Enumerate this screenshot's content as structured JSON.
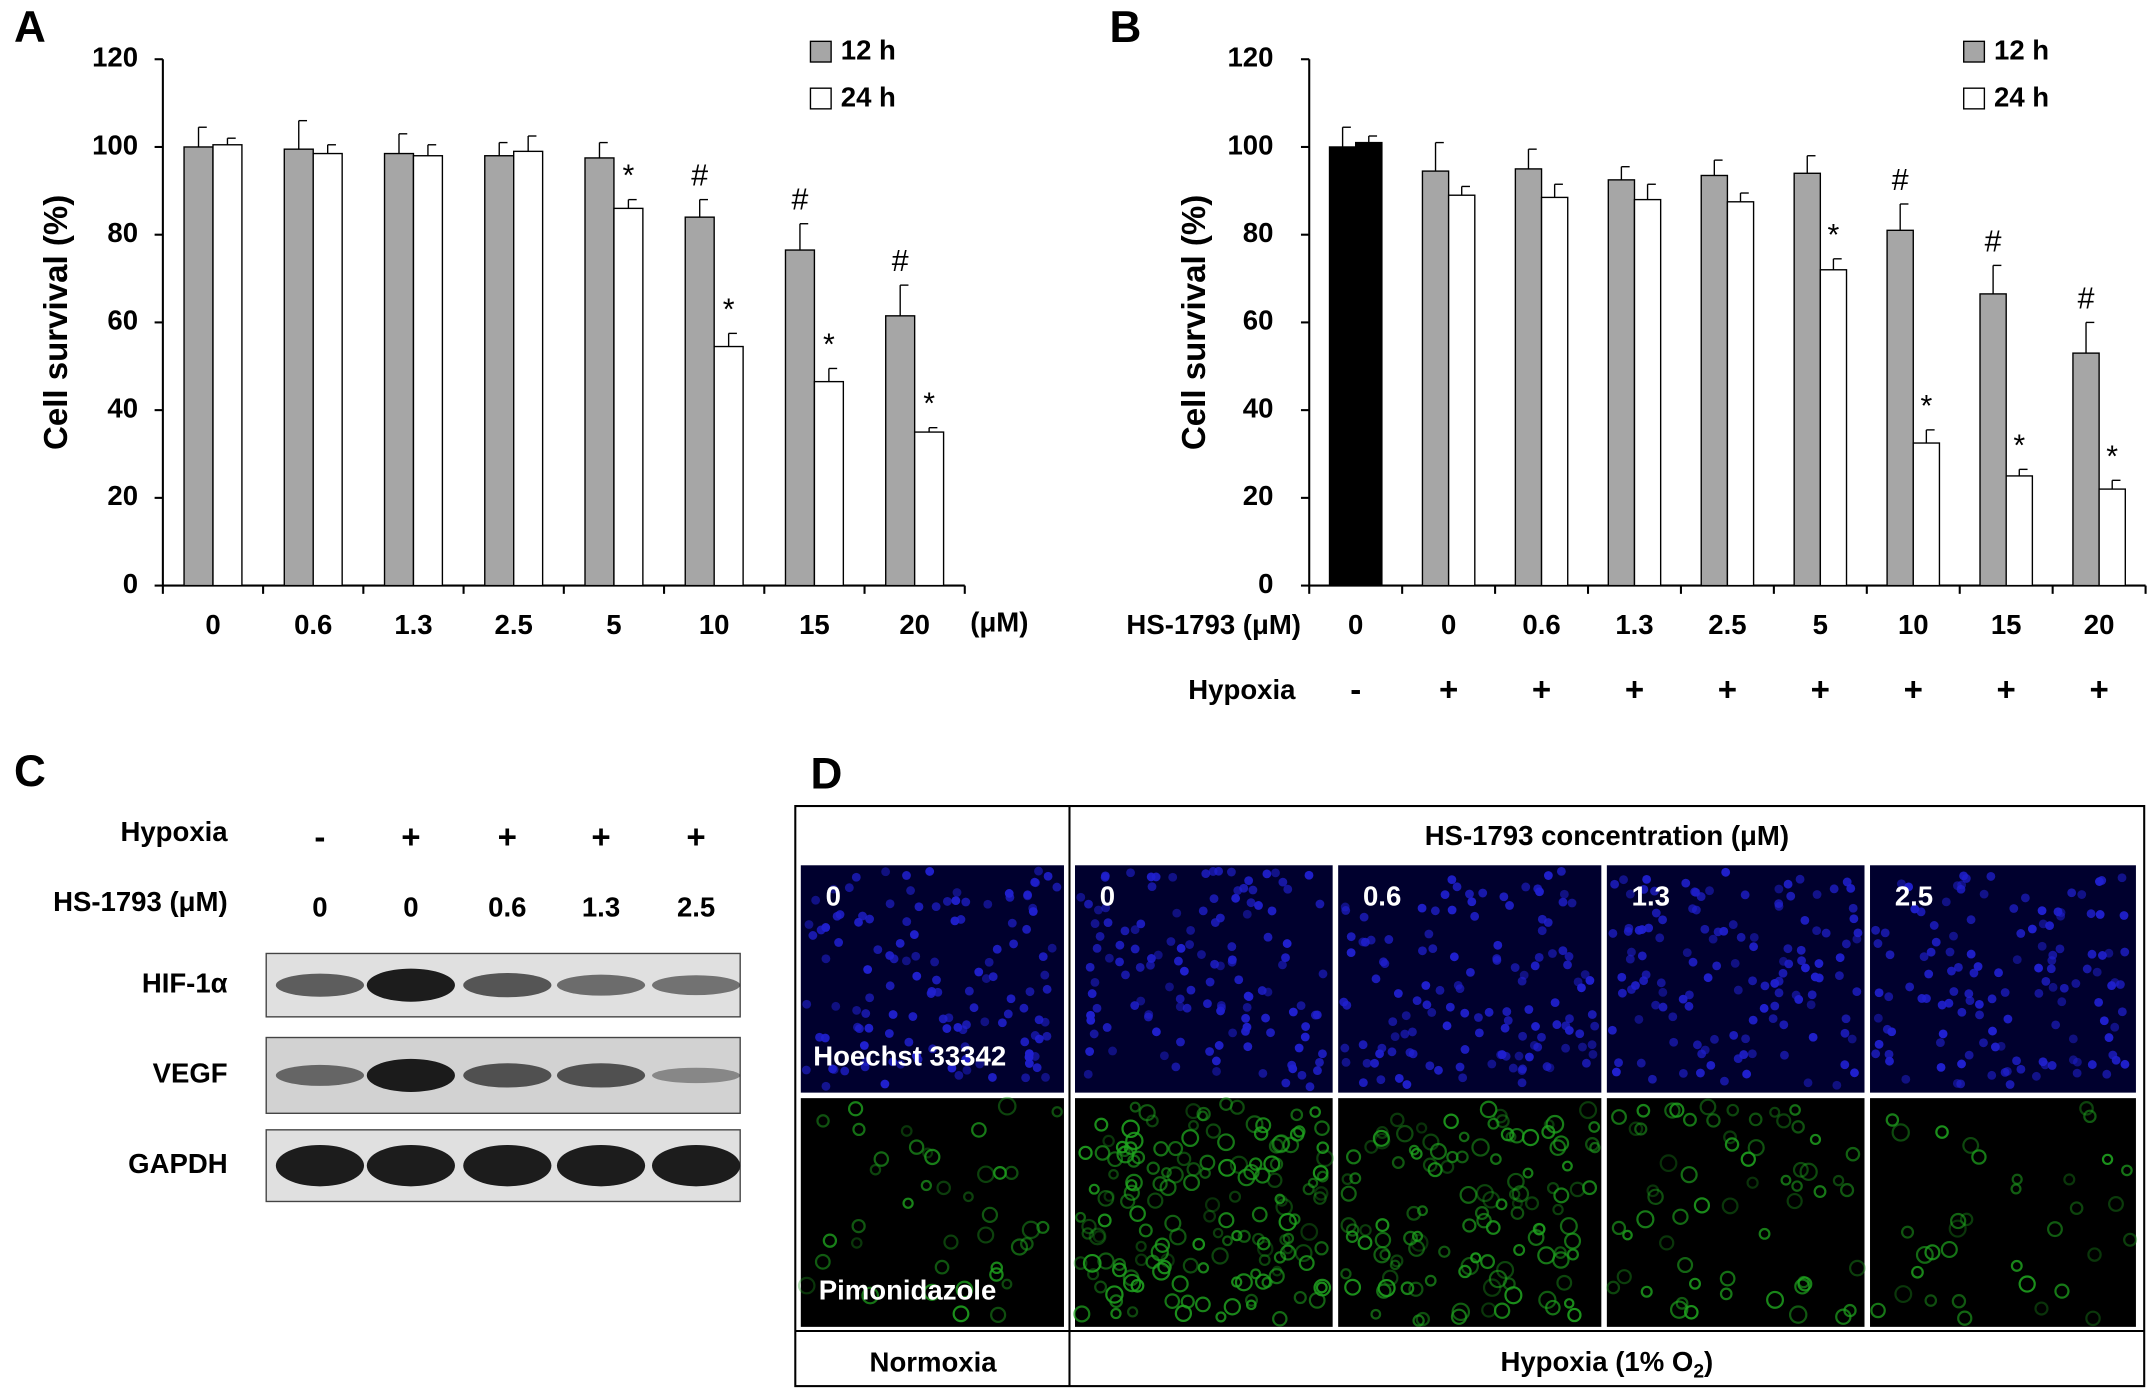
{
  "chart_data": [
    {
      "type": "bar",
      "panel": "A",
      "ylabel": "Cell survival (%)",
      "x_unit": "(μM)",
      "categories": [
        "0",
        "0.6",
        "1.3",
        "2.5",
        "5",
        "10",
        "15",
        "20"
      ],
      "ylim": [
        0,
        120
      ],
      "yticks": [
        0,
        20,
        40,
        60,
        80,
        100,
        120
      ],
      "grid": false,
      "legend": "top-right",
      "series": [
        {
          "name": "12 h",
          "color": "#a6a6a6",
          "values": [
            100,
            99.5,
            98.5,
            98,
            97.5,
            84,
            76.5,
            61.5
          ],
          "errors": [
            4.5,
            6.5,
            4.5,
            3,
            3.5,
            4,
            6,
            7
          ],
          "annotations": [
            null,
            null,
            null,
            null,
            null,
            "#",
            "#",
            "#"
          ]
        },
        {
          "name": "24 h",
          "color": "#ffffff",
          "values": [
            100.5,
            98.5,
            98,
            99,
            86,
            54.5,
            46.5,
            35
          ],
          "errors": [
            1.5,
            2,
            2.5,
            3.5,
            2,
            3,
            3,
            1
          ],
          "annotations": [
            null,
            null,
            null,
            null,
            "*",
            "*",
            "*",
            "*"
          ]
        }
      ]
    },
    {
      "type": "bar",
      "panel": "B",
      "ylabel": "Cell survival (%)",
      "xlabel": "HS-1793 (μM)",
      "categories": [
        "0",
        "0",
        "0.6",
        "1.3",
        "2.5",
        "5",
        "10",
        "15",
        "20"
      ],
      "hypoxia": {
        "label": "Hypoxia",
        "values": [
          "-",
          "+",
          "+",
          "+",
          "+",
          "+",
          "+",
          "+",
          "+"
        ]
      },
      "ylim": [
        0,
        120
      ],
      "yticks": [
        0,
        20,
        40,
        60,
        80,
        100,
        120
      ],
      "grid": false,
      "legend": "top-right",
      "series": [
        {
          "name": "12 h",
          "color": "#a6a6a6",
          "colors": [
            "#000000",
            "#a6a6a6",
            "#a6a6a6",
            "#a6a6a6",
            "#a6a6a6",
            "#a6a6a6",
            "#a6a6a6",
            "#a6a6a6",
            "#a6a6a6"
          ],
          "values": [
            100,
            94.5,
            95,
            92.5,
            93.5,
            94,
            81,
            66.5,
            53
          ],
          "errors": [
            4.5,
            6.5,
            4.5,
            3,
            3.5,
            4,
            6,
            6.5,
            7
          ],
          "annotations": [
            null,
            null,
            null,
            null,
            null,
            null,
            "#",
            "#",
            "#"
          ]
        },
        {
          "name": "24 h",
          "color": "#ffffff",
          "colors": [
            "#000000",
            "#ffffff",
            "#ffffff",
            "#ffffff",
            "#ffffff",
            "#ffffff",
            "#ffffff",
            "#ffffff",
            "#ffffff"
          ],
          "values": [
            101,
            89,
            88.5,
            88,
            87.5,
            72,
            32.5,
            25,
            22
          ],
          "errors": [
            1.5,
            2,
            3,
            3.5,
            2,
            2.5,
            3,
            1.5,
            2
          ],
          "annotations": [
            null,
            null,
            null,
            null,
            null,
            "*",
            "*",
            "*",
            "*"
          ]
        }
      ]
    }
  ],
  "panel_c": {
    "panel": "C",
    "rows": [
      {
        "label": "Hypoxia",
        "values": [
          "-",
          "+",
          "+",
          "+",
          "+"
        ]
      },
      {
        "label": "HS-1793 (μM)",
        "values": [
          "0",
          "0",
          "0.6",
          "1.3",
          "2.5"
        ]
      }
    ],
    "blots": [
      "HIF-1α",
      "VEGF",
      "GAPDH"
    ]
  },
  "panel_d": {
    "panel": "D",
    "header": "HS-1793 concentration (μM)",
    "columns": [
      "0",
      "0",
      "0.6",
      "1.3",
      "2.5"
    ],
    "stains": [
      "Hoechst 33342",
      "Pimonidazole"
    ],
    "normoxia": "Normoxia",
    "hypoxia": {
      "text": "Hypoxia (1% O",
      "sub": "2",
      "tail": ")"
    }
  }
}
